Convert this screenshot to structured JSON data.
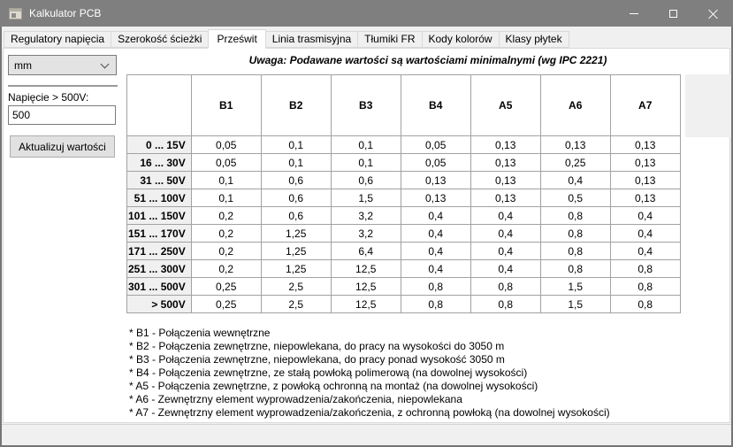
{
  "window": {
    "title": "Kalkulator PCB",
    "controls": {
      "minimize": "minimize",
      "maximize": "maximize",
      "close": "close"
    }
  },
  "icons": {
    "app": "calculator-window-icon",
    "minimize": "horizontal-bar",
    "maximize": "square-outline",
    "close": "x-cross",
    "combo_chevron": "chevron-down"
  },
  "colors": {
    "titlebar": "#7f7f7f",
    "form_background": "#f0f0f0",
    "page_background": "#ffffff",
    "grid_line": "#a2a2a2",
    "row_header_bg": "#f0f0f0",
    "button_bg": "#e1e1e1"
  },
  "tabs": [
    {
      "label": "Regulatory napięcia",
      "selected": false
    },
    {
      "label": "Szerokość ścieżki",
      "selected": false
    },
    {
      "label": "Prześwit",
      "selected": true
    },
    {
      "label": "Linia trasmisyjna",
      "selected": false
    },
    {
      "label": "Tłumiki FR",
      "selected": false
    },
    {
      "label": "Kody kolorów",
      "selected": false
    },
    {
      "label": "Klasy płytek",
      "selected": false
    }
  ],
  "sidebar": {
    "unit_select": {
      "value": "mm"
    },
    "voltage_label": "Napięcie > 500V:",
    "voltage_value": "500",
    "update_button": "Aktualizuj wartości"
  },
  "note": "Uwaga: Podawane wartości są wartościami minimalnymi (wg IPC 2221)",
  "table": {
    "columns": [
      "B1",
      "B2",
      "B3",
      "B4",
      "A5",
      "A6",
      "A7"
    ],
    "rows": [
      {
        "range": "0 ... 15V",
        "values": [
          "0,05",
          "0,1",
          "0,1",
          "0,05",
          "0,13",
          "0,13",
          "0,13"
        ]
      },
      {
        "range": "16 ... 30V",
        "values": [
          "0,05",
          "0,1",
          "0,1",
          "0,05",
          "0,13",
          "0,25",
          "0,13"
        ]
      },
      {
        "range": "31 ... 50V",
        "values": [
          "0,1",
          "0,6",
          "0,6",
          "0,13",
          "0,13",
          "0,4",
          "0,13"
        ]
      },
      {
        "range": "51 ... 100V",
        "values": [
          "0,1",
          "0,6",
          "1,5",
          "0,13",
          "0,13",
          "0,5",
          "0,13"
        ]
      },
      {
        "range": "101 ... 150V",
        "values": [
          "0,2",
          "0,6",
          "3,2",
          "0,4",
          "0,4",
          "0,8",
          "0,4"
        ]
      },
      {
        "range": "151 ... 170V",
        "values": [
          "0,2",
          "1,25",
          "3,2",
          "0,4",
          "0,4",
          "0,8",
          "0,4"
        ]
      },
      {
        "range": "171 ... 250V",
        "values": [
          "0,2",
          "1,25",
          "6,4",
          "0,4",
          "0,4",
          "0,8",
          "0,4"
        ]
      },
      {
        "range": "251 ... 300V",
        "values": [
          "0,2",
          "1,25",
          "12,5",
          "0,4",
          "0,4",
          "0,8",
          "0,8"
        ]
      },
      {
        "range": "301 ... 500V",
        "values": [
          "0,25",
          "2,5",
          "12,5",
          "0,8",
          "0,8",
          "1,5",
          "0,8"
        ]
      },
      {
        "range": "> 500V",
        "values": [
          "0,25",
          "2,5",
          "12,5",
          "0,8",
          "0,8",
          "1,5",
          "0,8"
        ]
      }
    ]
  },
  "footnotes": [
    "* B1 - Połączenia wewnętrzne",
    "* B2 - Połączenia zewnętrzne, niepowlekana, do pracy na wysokości do 3050 m",
    "* B3 - Połączenia zewnętrzne, niepowlekana, do pracy ponad wysokość 3050 m",
    "* B4 - Połączenia zewnętrzne, ze stałą powłoką polimerową (na dowolnej wysokości)",
    "* A5 - Połączenia zewnętrzne, z powłoką ochronną na montaż (na dowolnej wysokości)",
    "* A6 - Zewnętrzny element wyprowadzenia/zakończenia, niepowlekana",
    "* A7 - Zewnętrzny element wyprowadzenia/zakończenia, z ochronną powłoką (na dowolnej wysokości)"
  ]
}
